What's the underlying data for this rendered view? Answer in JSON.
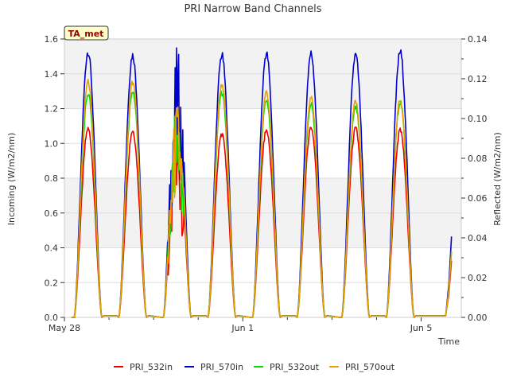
{
  "chart_data": {
    "type": "line",
    "title": "PRI Narrow Band Channels",
    "xlabel": "Time",
    "ylabel_left": "Incoming (W/m2/nm)",
    "ylabel_right": "Reflected (W/m2/nm)",
    "badge": "TA_met",
    "x_ticks": [
      {
        "day": 0,
        "label": "May 28"
      },
      {
        "day": 4,
        "label": "Jun 1"
      },
      {
        "day": 8,
        "label": "Jun 5"
      }
    ],
    "x_range_days": [
      0,
      8.9
    ],
    "ylim_left": [
      0,
      1.6
    ],
    "ylim_right": [
      0,
      0.14
    ],
    "y_ticks_left": [
      "0.0",
      "0.2",
      "0.4",
      "0.6",
      "0.8",
      "1.0",
      "1.2",
      "1.4",
      "1.6"
    ],
    "y_ticks_right": [
      "0.00",
      "0.02",
      "0.04",
      "0.06",
      "0.08",
      "0.10",
      "0.12",
      "0.14"
    ],
    "grid": true,
    "background_bands": true,
    "legend_position": "bottom",
    "series": [
      {
        "name": "PRI_532in",
        "color": "#ee0000",
        "axis": "left",
        "peaks": [
          1.1,
          1.09,
          1.1,
          1.07,
          1.09,
          1.11,
          1.1,
          1.09
        ]
      },
      {
        "name": "PRI_570in",
        "color": "#0000cc",
        "axis": "left",
        "peaks": [
          1.55,
          1.53,
          1.56,
          1.53,
          1.54,
          1.54,
          1.53,
          1.55
        ]
      },
      {
        "name": "PRI_532out",
        "color": "#00dd00",
        "axis": "right",
        "peaks": [
          0.114,
          0.116,
          0.11,
          0.115,
          0.111,
          0.109,
          0.107,
          0.11
        ]
      },
      {
        "name": "PRI_570out",
        "color": "#e8a000",
        "axis": "right",
        "peaks": [
          0.12,
          0.12,
          0.11,
          0.119,
          0.115,
          0.112,
          0.11,
          0.111
        ]
      }
    ],
    "day_centers": [
      0.53,
      1.53,
      2.53,
      3.53,
      4.53,
      5.53,
      6.53,
      7.53
    ],
    "day_halfwidth": 0.31
  }
}
